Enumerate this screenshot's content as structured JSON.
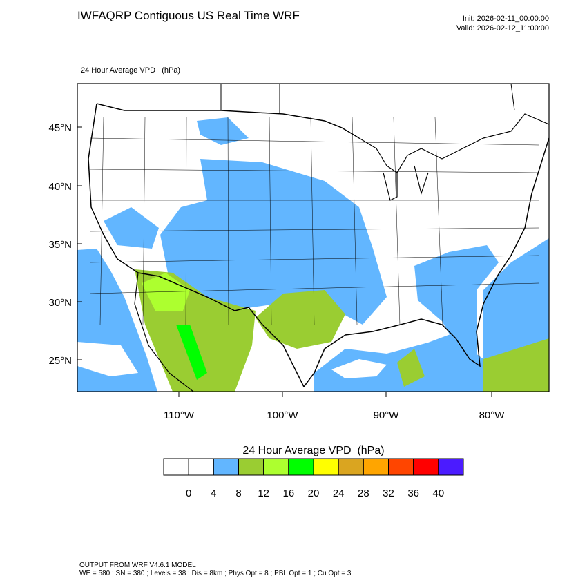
{
  "header": {
    "title": "IWFAQRP Contiguous US Real Time WRF",
    "init": "Init: 2026-02-11_00:00:00",
    "valid": "Valid: 2026-02-12_11:00:00",
    "subtitle": "24 Hour Average VPD   (hPa)"
  },
  "map": {
    "lat_labels": [
      "45°N",
      "40°N",
      "35°N",
      "30°N",
      "25°N"
    ],
    "lon_labels": [
      "110°W",
      "100°W",
      "90°W",
      "80°W"
    ]
  },
  "colorbar": {
    "title": "24 Hour Average VPD  (hPa)",
    "colors": [
      "#ffffff",
      "#ffffff",
      "#62b6ff",
      "#9acd32",
      "#adff2f",
      "#00ff00",
      "#ffff00",
      "#daa520",
      "#ffa500",
      "#ff4500",
      "#ff0000",
      "#4b1bff"
    ],
    "levels": [
      0,
      4,
      8,
      12,
      16,
      20,
      24,
      28,
      32,
      36,
      40
    ]
  },
  "footer": {
    "line1": "OUTPUT FROM WRF V4.6.1 MODEL",
    "line2": "WE = 580 ; SN = 380 ; Levels = 38 ; Dis = 8km ; Phys Opt = 8 ; PBL Opt = 1 ; Cu Opt = 3"
  }
}
